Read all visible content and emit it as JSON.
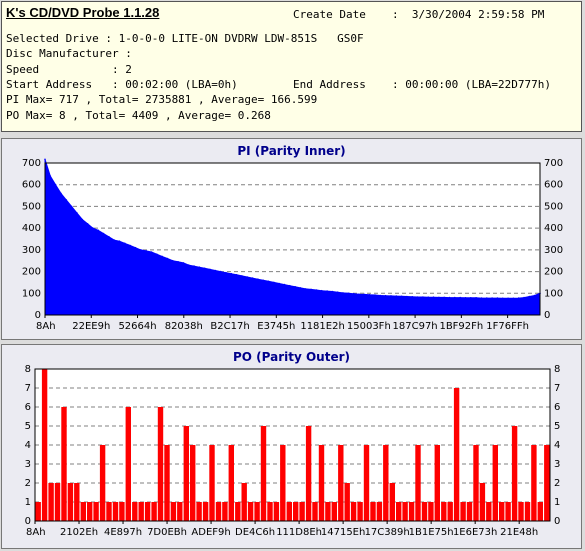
{
  "app": {
    "title": "K's CD/DVD Probe 1.1.28"
  },
  "info": {
    "create_date_label": "Create Date",
    "create_date_value": ":  3/30/2004 2:59:58 PM",
    "lines": [
      "Selected Drive : 1-0-0-0 LITE-ON DVDRW LDW-851S   GS0F",
      "Disc Manufacturer :",
      "Speed           : 2",
      "Start Address   : 00:02:00 (LBA=0h)",
      "PI Max= 717 , Total= 2735881 , Average= 166.599",
      "PO Max= 8 , Total= 4409 , Average= 0.268"
    ],
    "end_address_label": "End Address",
    "end_address_value": ": 00:00:00 (LBA=22D777h)"
  },
  "colors": {
    "pi": "#0000ff",
    "po": "#ff0000",
    "panel_bg": "#ebebf2",
    "plot_bg": "#ffffff"
  },
  "chart_data": [
    {
      "type": "area",
      "title": "PI (Parity Inner)",
      "ylim": [
        0,
        700
      ],
      "yticks": [
        0,
        100,
        200,
        300,
        400,
        500,
        600,
        700
      ],
      "xticks": [
        "8Ah",
        "22EE9h",
        "52664h",
        "82038h",
        "B2C17h",
        "E3745h",
        "1181E2h",
        "15003Fh",
        "187C97h",
        "1BF92Fh",
        "1F76FFh"
      ],
      "series": [
        {
          "values": [
            717,
            640,
            600,
            560,
            530,
            500,
            470,
            440,
            420,
            400,
            390,
            375,
            360,
            345,
            340,
            330,
            320,
            310,
            300,
            295,
            290,
            280,
            270,
            260,
            250,
            245,
            240,
            230,
            225,
            220,
            215,
            210,
            205,
            200,
            195,
            190,
            185,
            180,
            175,
            170,
            165,
            160,
            155,
            150,
            145,
            140,
            135,
            130,
            125,
            120,
            118,
            115,
            112,
            110,
            108,
            105,
            102,
            100,
            98,
            96,
            95,
            93,
            92,
            90,
            89,
            88,
            87,
            86,
            85,
            84,
            83,
            83,
            82,
            82,
            81,
            81,
            80,
            80,
            80,
            79,
            79,
            79,
            78,
            78,
            78,
            78,
            77,
            77,
            77,
            78,
            80,
            85,
            90,
            100
          ]
        }
      ]
    },
    {
      "type": "bar",
      "title": "PO (Parity Outer)",
      "ylim": [
        0,
        8
      ],
      "yticks": [
        0,
        1,
        2,
        3,
        4,
        5,
        6,
        7,
        8
      ],
      "xticks": [
        "8Ah",
        "2102Eh",
        "4E897h",
        "7D0EBh",
        "ADEF9h",
        "DE4C6h",
        "111D8Eh",
        "14715Eh",
        "17C389h",
        "1B1E75h",
        "1E6E73h",
        "21E48h"
      ],
      "series": [
        {
          "values": [
            1,
            8,
            2,
            2,
            6,
            2,
            2,
            1,
            1,
            1,
            4,
            1,
            1,
            1,
            6,
            1,
            1,
            1,
            1,
            6,
            4,
            1,
            1,
            5,
            4,
            1,
            1,
            4,
            1,
            1,
            4,
            1,
            2,
            1,
            1,
            5,
            1,
            1,
            4,
            1,
            1,
            1,
            5,
            1,
            4,
            1,
            1,
            4,
            2,
            1,
            1,
            4,
            1,
            1,
            4,
            2,
            1,
            1,
            1,
            4,
            1,
            1,
            4,
            1,
            1,
            7,
            1,
            1,
            4,
            2,
            1,
            4,
            1,
            1,
            5,
            1,
            1,
            4,
            1,
            4
          ]
        }
      ]
    }
  ]
}
